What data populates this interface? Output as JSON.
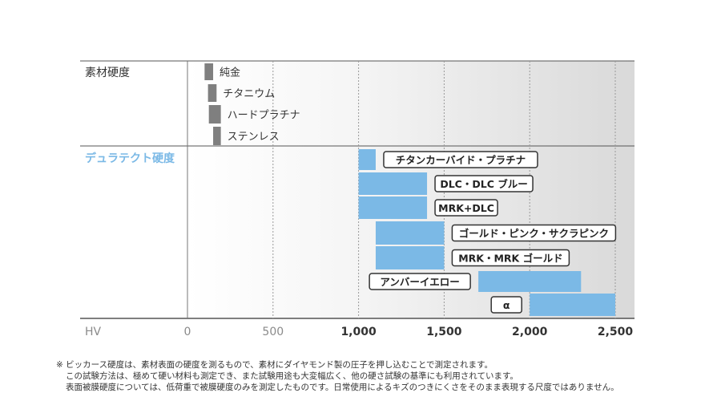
{
  "chart_data": {
    "type": "bar",
    "x_axis_label": "HV",
    "xlim": [
      0,
      2550
    ],
    "x_ticks": [
      "0",
      "500",
      "1,000",
      "1,500",
      "2,000",
      "2,500"
    ],
    "x_tick_values": [
      0,
      500,
      1000,
      1500,
      2000,
      2500
    ],
    "groups": [
      {
        "label": "素材硬度",
        "color": "#7f7f7f",
        "bars": [
          {
            "name": "純金",
            "start": 100,
            "end": 150
          },
          {
            "name": "チタニウム",
            "start": 120,
            "end": 170
          },
          {
            "name": "ハードプラチナ",
            "start": 125,
            "end": 195
          },
          {
            "name": "ステンレス",
            "start": 150,
            "end": 195
          }
        ]
      },
      {
        "label": "デュラテクト硬度",
        "color": "#7bb9e6",
        "bars": [
          {
            "name": "チタンカーバイド・プラチナ",
            "start": 1000,
            "end": 1100
          },
          {
            "name": "DLC・DLC ブルー",
            "start": 1000,
            "end": 1400
          },
          {
            "name": "MRK+DLC",
            "start": 1000,
            "end": 1400
          },
          {
            "name": "ゴールド・ピンク・サクラピンク",
            "start": 1100,
            "end": 1500
          },
          {
            "name": "MRK・MRK ゴールド",
            "start": 1100,
            "end": 1500
          },
          {
            "name": "アンバーイエロー",
            "start": 1700,
            "end": 2300
          },
          {
            "name": "α",
            "start": 2000,
            "end": 2500
          }
        ]
      }
    ]
  },
  "notes": [
    "※ ビッカース硬度は、素材表面の硬度を測るもので、素材にダイヤモンド製の圧子を押し込むことで測定されます。",
    "この試験方法は、極めて硬い材料も測定でき、また試験用途も大変幅広く、他の硬さ試験の基準にも利用されています。",
    "表面被膜硬度については、低荷重で被膜硬度のみを測定したものです。日常使用によるキズのつきにくさをそのまま表現する尺度ではありません。"
  ]
}
